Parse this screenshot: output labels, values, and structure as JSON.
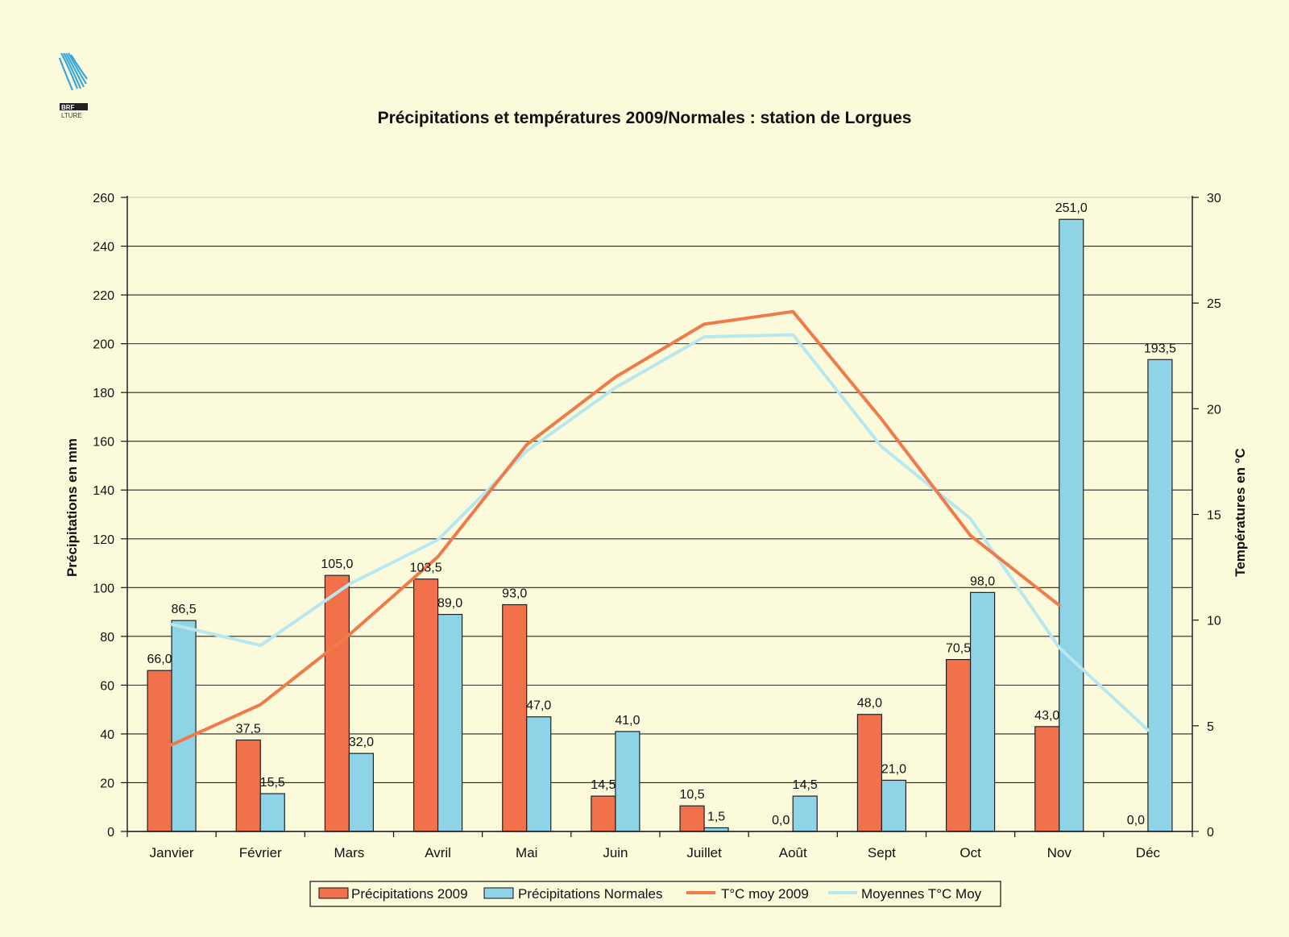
{
  "colors": {
    "background": "#fbfbdc",
    "precip_2009": "#f0714a",
    "precip_normal": "#8fd3e6",
    "temp_2009": "#f07a4a",
    "temp_normal": "#b7e7ef",
    "grid": "#111111",
    "logo": "#3aa6d9"
  },
  "logo": {
    "icon": "wave-logo-icon",
    "text_line1": "BRF",
    "text_line2": "LTURE"
  },
  "chart_data": {
    "type": "bar",
    "title": "Précipitations et températures 2009/Normales : station de Lorgues",
    "categories": [
      "Janvier",
      "Février",
      "Mars",
      "Avril",
      "Mai",
      "Juin",
      "Juillet",
      "Août",
      "Sept",
      "Oct",
      "Nov",
      "Déc"
    ],
    "ylabel": "Précipitations en mm",
    "ylabel2": "Températures en °C",
    "ylim": [
      0,
      260
    ],
    "y2lim": [
      0,
      30
    ],
    "yticks": [
      "0",
      "20",
      "40",
      "60",
      "80",
      "100",
      "120",
      "140",
      "160",
      "180",
      "200",
      "220",
      "240",
      "260"
    ],
    "y2ticks": [
      "0",
      "5",
      "10",
      "15",
      "20",
      "25",
      "30"
    ],
    "grid": true,
    "legend_position": "bottom",
    "series": [
      {
        "name": "Précipitations 2009",
        "kind": "bar",
        "axis": "left",
        "values": [
          66.0,
          37.5,
          105.0,
          103.5,
          93.0,
          14.5,
          10.5,
          0.0,
          48.0,
          70.5,
          43.0,
          0.0
        ],
        "labels": [
          "66,0",
          "37,5",
          "105,0",
          "103,5",
          "93,0",
          "14,5",
          "10,5",
          "0,0",
          "48,0",
          "70,5",
          "43,0",
          "0,0"
        ]
      },
      {
        "name": "Précipitations Normales",
        "kind": "bar",
        "axis": "left",
        "values": [
          86.5,
          15.5,
          32.0,
          89.0,
          47.0,
          41.0,
          1.5,
          14.5,
          21.0,
          98.0,
          251.0,
          193.5
        ],
        "labels": [
          "86,5",
          "15,5",
          "32,0",
          "89,0",
          "47,0",
          "41,0",
          "1,5",
          "14,5",
          "21,0",
          "98,0",
          "251,0",
          "193,5"
        ]
      },
      {
        "name": "T°C moy 2009",
        "kind": "line",
        "axis": "right",
        "values": [
          4.1,
          6.0,
          9.3,
          13.0,
          18.3,
          21.5,
          24.0,
          24.6,
          19.5,
          14.0,
          10.7,
          null
        ]
      },
      {
        "name": "Moyennes T°C Moy",
        "kind": "line",
        "axis": "right",
        "values": [
          9.8,
          8.8,
          11.7,
          13.8,
          18.0,
          21.0,
          23.4,
          23.5,
          18.2,
          14.8,
          8.7,
          4.8
        ]
      }
    ]
  }
}
